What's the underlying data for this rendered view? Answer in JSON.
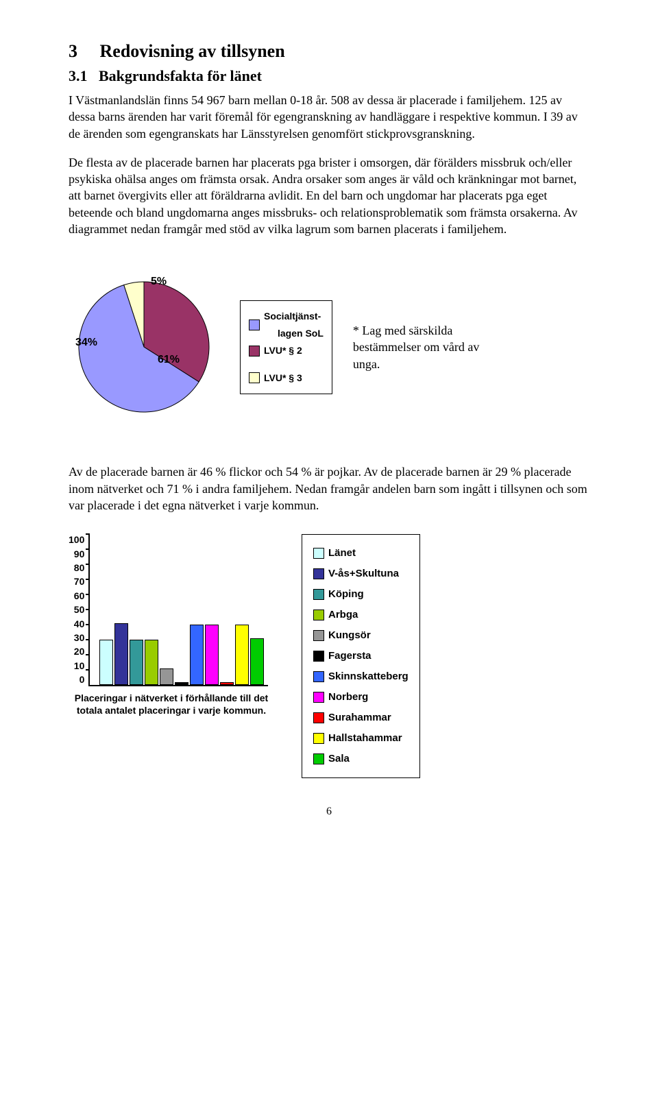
{
  "section": {
    "number": "3",
    "title": "Redovisning av tillsynen",
    "sub_number": "3.1",
    "sub_title": "Bakgrundsfakta för länet"
  },
  "para1": "I Västmanlandslän finns 54 967 barn mellan 0-18 år. 508 av dessa är placerade i familjehem. 125 av dessa barns ärenden har varit föremål för egengranskning av handläggare i respektive kommun. I 39 av de ärenden som egengranskats har Länsstyrelsen genomfört stickprovsgranskning.",
  "para2": "De flesta av de placerade barnen har placerats pga brister i omsorgen, där förälders missbruk och/eller psykiska ohälsa anges om främsta orsak. Andra orsaker som anges är våld och kränkningar mot barnet, att barnet övergivits eller att föräldrarna avlidit. En del barn och ungdomar har placerats pga eget beteende och bland ungdomarna anges missbruks- och relationsproblematik som främsta orsakerna. Av diagrammet nedan framgår med stöd av vilka lagrum som barnen placerats i familjehem.",
  "pie": {
    "type": "pie",
    "slices": [
      {
        "label": "Socialtjänst-lagen SoL",
        "value": 61,
        "color": "#9999ff"
      },
      {
        "label": "LVU* § 2",
        "value": 34,
        "color": "#993366"
      },
      {
        "label": "LVU* § 3",
        "value": 5,
        "color": "#ffffcc"
      }
    ],
    "pct_labels": {
      "sol": "61%",
      "lvu2": "34%",
      "lvu3": "5%"
    },
    "legend_labels": {
      "sol_line1": "Socialtjänst-",
      "sol_line2": "lagen SoL",
      "lvu2": "LVU* § 2",
      "lvu3": "LVU* § 3"
    }
  },
  "footnote": "* Lag med särskilda bestämmelser om vård av unga.",
  "para3": "Av de placerade barnen är 46 % flickor och 54 % är pojkar. Av de placerade barnen är 29 % placerade inom nätverket och 71 % i andra familjehem. Nedan framgår andelen barn som ingått i tillsynen och som var placerade i det egna nätverket i varje kommun.",
  "bar": {
    "type": "bar",
    "ylim": [
      0,
      100
    ],
    "ytick_step": 10,
    "yticks": [
      "100",
      "90",
      "80",
      "70",
      "60",
      "50",
      "40",
      "30",
      "20",
      "10",
      "0"
    ],
    "caption": "Placeringar i nätverket i förhållande till det totala antalet placeringar i varje kommun.",
    "series": [
      {
        "label": "Länet",
        "value": 29,
        "color": "#ccffff"
      },
      {
        "label": "V-ås+Skultuna",
        "value": 40,
        "color": "#333399"
      },
      {
        "label": "Köping",
        "value": 29,
        "color": "#339999"
      },
      {
        "label": "Arbga",
        "value": 29,
        "color": "#99cc00"
      },
      {
        "label": "Kungsör",
        "value": 10,
        "color": "#969696"
      },
      {
        "label": "Fagersta",
        "value": 1,
        "color": "#000000"
      },
      {
        "label": "Skinnskatteberg",
        "value": 39,
        "color": "#3366ff"
      },
      {
        "label": "Norberg",
        "value": 39,
        "color": "#ff00ff"
      },
      {
        "label": "Surahammar",
        "value": 1,
        "color": "#ff0000"
      },
      {
        "label": "Hallstahammar",
        "value": 39,
        "color": "#ffff00"
      },
      {
        "label": "Sala",
        "value": 30,
        "color": "#00cc00"
      }
    ]
  },
  "page_number": "6"
}
